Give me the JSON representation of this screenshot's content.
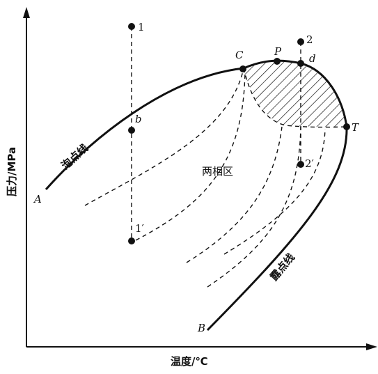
{
  "axes": {
    "x_label": "温度/℃",
    "y_label": "压力/MPa"
  },
  "curves": {
    "bubble_line_label": "泡点线",
    "dew_line_label": "露点线",
    "two_phase_label": "两相区"
  },
  "points": {
    "A": "A",
    "B": "B",
    "C": "C",
    "P": "P",
    "T": "T",
    "b": "b",
    "d": "d",
    "p1": "1",
    "p1prime": "1′",
    "p2": "2",
    "p2prime": "2′"
  },
  "colors": {
    "ink": "#111111",
    "background": "#ffffff"
  }
}
